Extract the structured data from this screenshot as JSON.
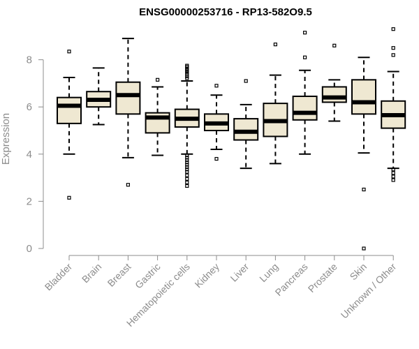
{
  "chart_data": {
    "type": "boxplot",
    "title": "ENSG00000253716 - RP13-582O9.5",
    "xlabel": "",
    "ylabel": "Expression",
    "ylim": [
      0,
      9.2
    ],
    "yticks": [
      0,
      2,
      4,
      6,
      8
    ],
    "grid": false,
    "categories": [
      "Bladder",
      "Brain",
      "Breast",
      "Gastric",
      "Hematopoietic cells",
      "Kidney",
      "Liver",
      "Lung",
      "Pancreas",
      "Prostate",
      "Skin",
      "Unknown / Other"
    ],
    "boxes": [
      {
        "name": "Bladder",
        "whisker_low": 4.0,
        "q1": 5.3,
        "median": 6.05,
        "q3": 6.4,
        "whisker_high": 7.25,
        "outliers": [
          8.35,
          2.15
        ]
      },
      {
        "name": "Brain",
        "whisker_low": 5.25,
        "q1": 6.0,
        "median": 6.3,
        "q3": 6.65,
        "whisker_high": 7.65,
        "outliers": []
      },
      {
        "name": "Breast",
        "whisker_low": 3.85,
        "q1": 5.7,
        "median": 6.5,
        "q3": 7.05,
        "whisker_high": 8.9,
        "outliers": [
          2.7
        ]
      },
      {
        "name": "Gastric",
        "whisker_low": 3.95,
        "q1": 4.9,
        "median": 5.55,
        "q3": 5.75,
        "whisker_high": 6.85,
        "outliers": [
          7.15
        ]
      },
      {
        "name": "Hematopoietic cells",
        "whisker_low": 4.0,
        "q1": 5.15,
        "median": 5.5,
        "q3": 5.9,
        "whisker_high": 7.1,
        "outliers": [
          7.75,
          7.7,
          7.62,
          7.55,
          7.48,
          7.4,
          7.3,
          7.22,
          3.95,
          3.85,
          3.75,
          3.65,
          3.55,
          3.45,
          3.35,
          3.25,
          3.1,
          2.95,
          2.8,
          2.65
        ]
      },
      {
        "name": "Kidney",
        "whisker_low": 4.2,
        "q1": 5.0,
        "median": 5.3,
        "q3": 5.7,
        "whisker_high": 6.5,
        "outliers": [
          6.9,
          3.8
        ]
      },
      {
        "name": "Liver",
        "whisker_low": 3.4,
        "q1": 4.6,
        "median": 4.95,
        "q3": 5.5,
        "whisker_high": 6.1,
        "outliers": [
          7.1
        ]
      },
      {
        "name": "Lung",
        "whisker_low": 3.6,
        "q1": 4.75,
        "median": 5.4,
        "q3": 6.15,
        "whisker_high": 7.35,
        "outliers": [
          8.65
        ]
      },
      {
        "name": "Pancreas",
        "whisker_low": 4.0,
        "q1": 5.45,
        "median": 5.75,
        "q3": 6.45,
        "whisker_high": 7.55,
        "outliers": [
          9.15,
          8.1
        ]
      },
      {
        "name": "Prostate",
        "whisker_low": 5.4,
        "q1": 6.2,
        "median": 6.4,
        "q3": 6.85,
        "whisker_high": 7.15,
        "outliers": [
          8.6
        ]
      },
      {
        "name": "Skin",
        "whisker_low": 4.05,
        "q1": 5.7,
        "median": 6.2,
        "q3": 7.15,
        "whisker_high": 8.1,
        "outliers": [
          2.5,
          0.0
        ]
      },
      {
        "name": "Unknown / Other",
        "whisker_low": 3.4,
        "q1": 5.1,
        "median": 5.65,
        "q3": 6.25,
        "whisker_high": 7.5,
        "outliers": [
          9.3,
          8.5,
          8.2,
          3.35,
          3.2,
          3.05,
          2.9
        ]
      }
    ],
    "colors": {
      "box_fill": "#efe8d2",
      "box_stroke": "#000000",
      "median": "#000000",
      "axis": "#8c8c8c",
      "text_muted": "#8c8c8c",
      "title": "#000000"
    }
  }
}
